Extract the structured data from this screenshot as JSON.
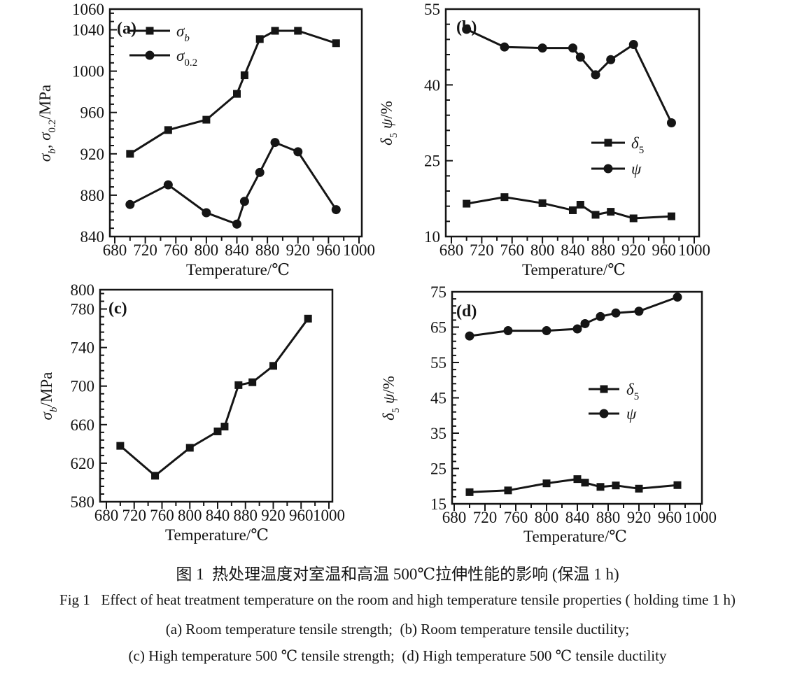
{
  "figure_caption": {
    "zh": "图 1  热处理温度对室温和高温 500℃拉伸性能的影响 (保温 1 h)",
    "en": "Fig 1   Effect of heat treatment temperature on the room and high temperature tensile properties ( holding time 1 h)",
    "sub_ab": "(a) Room temperature tensile strength;  (b) Room temperature tensile ductility;",
    "sub_cd": "(c) High temperature 500 ℃ tensile strength;  (d) High temperature 500 ℃ tensile ductility"
  },
  "colors": {
    "ink": "#151515",
    "paper": "#ffffff"
  },
  "chart_data": [
    {
      "id": "a",
      "type": "line",
      "panel_label": "(a)",
      "xlabel": "Temperature/℃",
      "ylabel_segments": [
        {
          "t": "σ",
          "i": 1
        },
        {
          "t": "b",
          "sub": 1,
          "i": 1
        },
        {
          "t": ", "
        },
        {
          "t": "σ",
          "i": 1
        },
        {
          "t": "0.2",
          "sub": 1
        },
        {
          "t": "/MPa"
        }
      ],
      "x": [
        700,
        750,
        800,
        840,
        850,
        870,
        890,
        920,
        970
      ],
      "xlim": [
        680,
        1000
      ],
      "xticks": [
        680,
        720,
        760,
        800,
        840,
        880,
        920,
        960,
        1000
      ],
      "x_minor_step": 20,
      "ylim": [
        840,
        1060
      ],
      "yticks": [
        840,
        880,
        920,
        960,
        1000,
        1040,
        1060
      ],
      "y_minor_step": 8,
      "grid": false,
      "legend_position": "upper-left",
      "series": [
        {
          "name_id": "sigma-b",
          "marker": "square",
          "name_segments": [
            {
              "t": "σ",
              "i": 1
            },
            {
              "t": "b",
              "sub": 1,
              "i": 1
            }
          ],
          "values": [
            920,
            943,
            953,
            978,
            996,
            1031,
            1039,
            1039,
            1027
          ]
        },
        {
          "name_id": "sigma-0-2",
          "marker": "circle",
          "name_segments": [
            {
              "t": "σ",
              "i": 1
            },
            {
              "t": "0.2",
              "sub": 1
            }
          ],
          "values": [
            871,
            890,
            863,
            852,
            874,
            902,
            931,
            922,
            866
          ]
        }
      ]
    },
    {
      "id": "b",
      "type": "line",
      "panel_label": "(b)",
      "xlabel": "Temperature/℃",
      "ylabel_segments": [
        {
          "t": "δ",
          "i": 1
        },
        {
          "t": "5",
          "sub": 1
        },
        {
          "t": " ψ",
          "i": 1
        },
        {
          "t": "/%"
        }
      ],
      "x": [
        700,
        750,
        800,
        840,
        850,
        870,
        890,
        920,
        970
      ],
      "xlim": [
        680,
        1000
      ],
      "xticks": [
        680,
        720,
        760,
        800,
        840,
        880,
        920,
        960,
        1000
      ],
      "x_minor_step": 20,
      "ylim": [
        10,
        55
      ],
      "yticks": [
        10,
        25,
        40,
        55
      ],
      "y_minor_step": 3,
      "grid": false,
      "legend_position": "middle-right",
      "series": [
        {
          "name_id": "delta-5",
          "marker": "square",
          "name_segments": [
            {
              "t": "δ",
              "i": 1
            },
            {
              "t": "5",
              "sub": 1
            }
          ],
          "values": [
            16.5,
            17.8,
            16.6,
            15.2,
            16.3,
            14.3,
            14.9,
            13.6,
            14.0
          ]
        },
        {
          "name_id": "psi",
          "marker": "circle",
          "name_segments": [
            {
              "t": "ψ",
              "i": 1
            }
          ],
          "values": [
            51,
            47.5,
            47.3,
            47.3,
            45.5,
            42,
            45,
            48,
            32.5
          ]
        }
      ]
    },
    {
      "id": "c",
      "type": "line",
      "panel_label": "(c)",
      "xlabel": "Temperature/℃",
      "ylabel_segments": [
        {
          "t": "σ",
          "i": 1
        },
        {
          "t": "b",
          "sub": 1,
          "i": 1
        },
        {
          "t": "/MPa"
        }
      ],
      "x": [
        700,
        750,
        800,
        840,
        850,
        870,
        890,
        920,
        970
      ],
      "xlim": [
        680,
        1000
      ],
      "xticks": [
        680,
        720,
        760,
        800,
        840,
        880,
        920,
        960,
        1000
      ],
      "x_minor_step": 20,
      "ylim": [
        580,
        800
      ],
      "yticks": [
        580,
        620,
        660,
        700,
        740,
        780,
        800
      ],
      "y_minor_step": 8,
      "grid": false,
      "legend_position": "none",
      "series": [
        {
          "name_id": "sigma-b",
          "marker": "square",
          "name_segments": [
            {
              "t": "σ",
              "i": 1
            },
            {
              "t": "b",
              "sub": 1,
              "i": 1
            }
          ],
          "values": [
            638,
            607,
            636,
            653,
            658,
            701,
            704,
            721,
            770
          ]
        }
      ]
    },
    {
      "id": "d",
      "type": "line",
      "panel_label": "(d)",
      "xlabel": "Temperature/℃",
      "ylabel_segments": [
        {
          "t": "δ",
          "i": 1
        },
        {
          "t": "5",
          "sub": 1
        },
        {
          "t": " ψ",
          "i": 1
        },
        {
          "t": "/%"
        }
      ],
      "x": [
        700,
        750,
        800,
        840,
        850,
        870,
        890,
        920,
        970
      ],
      "xlim": [
        680,
        1000
      ],
      "xticks": [
        680,
        720,
        760,
        800,
        840,
        880,
        920,
        960,
        1000
      ],
      "x_minor_step": 20,
      "ylim": [
        15,
        75
      ],
      "yticks": [
        15,
        25,
        35,
        45,
        55,
        65,
        75
      ],
      "y_minor_step": 2,
      "grid": false,
      "legend_position": "middle-right",
      "series": [
        {
          "name_id": "delta-5",
          "marker": "square",
          "name_segments": [
            {
              "t": "δ",
              "i": 1
            },
            {
              "t": "5",
              "sub": 1
            }
          ],
          "values": [
            18.3,
            18.8,
            20.8,
            22,
            21,
            19.8,
            20.2,
            19.3,
            20.3
          ]
        },
        {
          "name_id": "psi",
          "marker": "circle",
          "name_segments": [
            {
              "t": "ψ",
              "i": 1
            }
          ],
          "values": [
            62.5,
            64,
            64,
            64.5,
            66,
            68,
            69,
            69.5,
            73.5
          ]
        }
      ]
    }
  ]
}
